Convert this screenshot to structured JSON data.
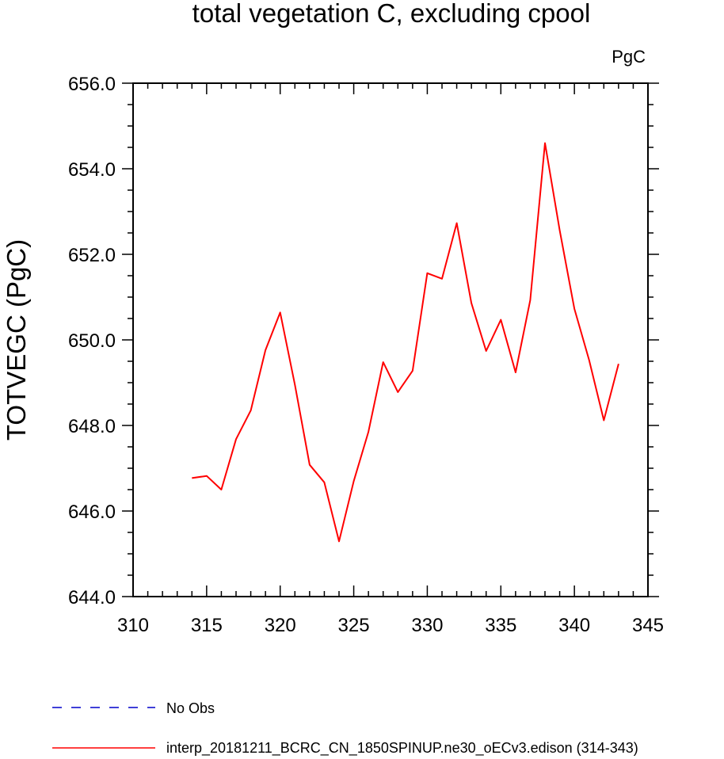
{
  "chart_data": {
    "type": "line",
    "title": "total vegetation C, excluding cpool",
    "units_label": "PgC",
    "xlabel": "",
    "ylabel": "TOTVEGC  (PgC)",
    "xlim": [
      310,
      345
    ],
    "ylim": [
      644.0,
      656.0
    ],
    "x_ticks": [
      310,
      315,
      320,
      325,
      330,
      335,
      340,
      345
    ],
    "x_tick_labels": [
      "310",
      "315",
      "320",
      "325",
      "330",
      "335",
      "340",
      "345"
    ],
    "y_ticks": [
      644,
      646,
      648,
      650,
      652,
      654,
      656
    ],
    "y_tick_labels": [
      "644.0",
      "646.0",
      "648.0",
      "650.0",
      "652.0",
      "654.0",
      "656.0"
    ],
    "series": [
      {
        "name": "interp_20181211_BCRC_CN_1850SPINUP.ne30_oECv3.edison (314-343)",
        "color": "#ff0000",
        "style": "solid",
        "x": [
          314,
          315,
          316,
          317,
          318,
          319,
          320,
          321,
          322,
          323,
          324,
          325,
          326,
          327,
          328,
          329,
          330,
          331,
          332,
          333,
          334,
          335,
          336,
          337,
          338,
          339,
          340,
          341,
          342,
          343
        ],
        "values": [
          646.77,
          646.82,
          646.5,
          647.68,
          648.35,
          649.76,
          650.64,
          648.95,
          647.08,
          646.67,
          645.29,
          646.7,
          647.85,
          649.48,
          648.78,
          649.28,
          651.56,
          651.43,
          652.73,
          650.86,
          649.74,
          650.47,
          649.24,
          650.93,
          654.6,
          652.56,
          650.73,
          649.53,
          648.12,
          649.44
        ]
      }
    ],
    "legend": [
      {
        "label": "No Obs",
        "color": "#0000cc",
        "style": "dashed"
      },
      {
        "label": "interp_20181211_BCRC_CN_1850SPINUP.ne30_oECv3.edison (314-343)",
        "color": "#ff0000",
        "style": "solid"
      }
    ]
  }
}
